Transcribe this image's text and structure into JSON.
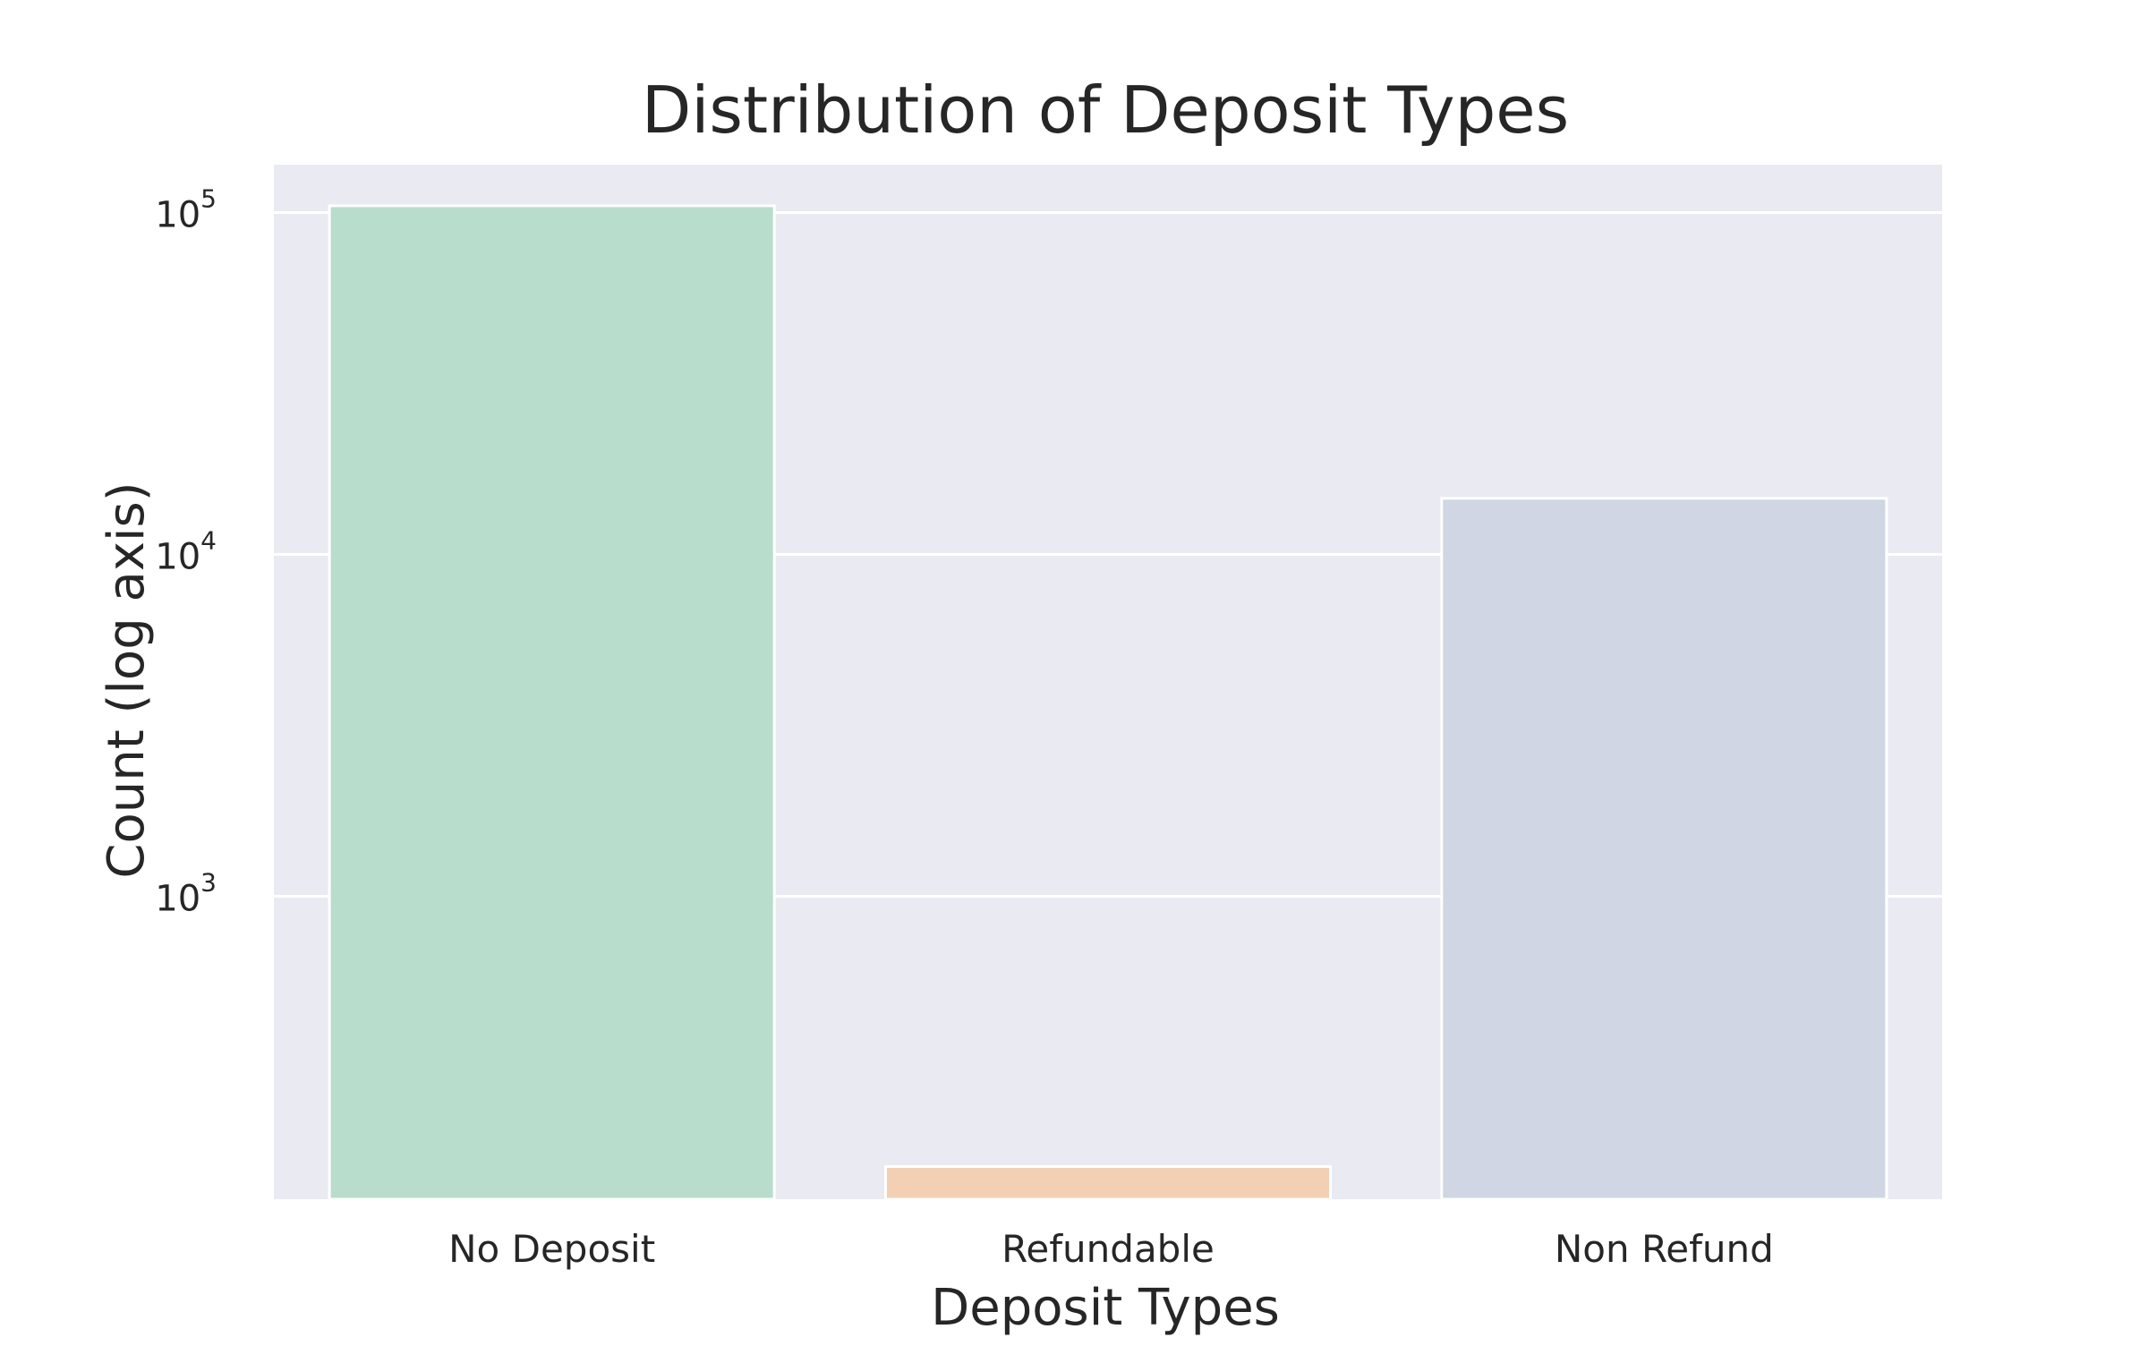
{
  "chart_data": {
    "type": "bar",
    "title": "Distribution of Deposit Types",
    "xlabel": "Deposit Types",
    "ylabel": "Count (log axis)",
    "yscale": "log",
    "ylim": [
      130,
      138000
    ],
    "yticks": [
      {
        "value": 1000,
        "base": "10",
        "exp": "3"
      },
      {
        "value": 10000,
        "base": "10",
        "exp": "4"
      },
      {
        "value": 100000,
        "base": "10",
        "exp": "5"
      }
    ],
    "categories": [
      "No Deposit",
      "Refundable",
      "Non Refund"
    ],
    "values": [
      104641,
      162,
      14587
    ],
    "colors": [
      "#b9ddcc",
      "#f3d0b4",
      "#d0d6e3"
    ],
    "grid": true,
    "plot_background": "#eaeaf2"
  }
}
